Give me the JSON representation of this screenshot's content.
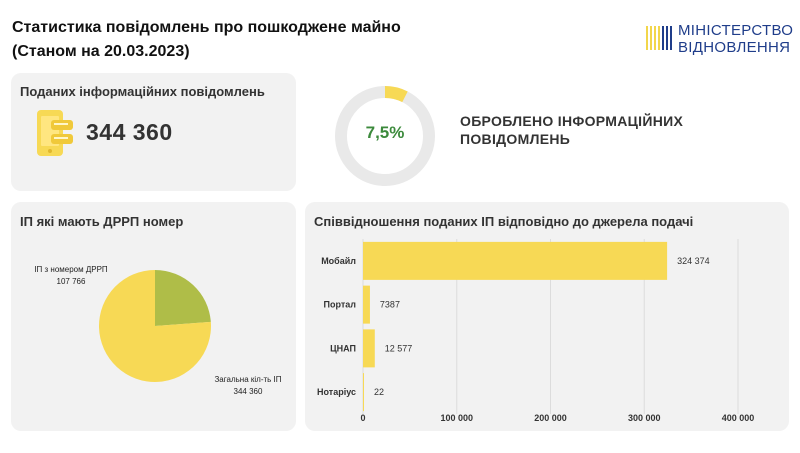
{
  "header": {
    "title_line1": "Статистика повідомлень про пошкоджене майно",
    "title_line2": "(Станом на 20.03.2023)"
  },
  "logo": {
    "line1": "МІНІСТЕРСТВО",
    "line2": "ВІДНОВЛЕННЯ",
    "icon": "ministry-logo-icon",
    "color": "#1f3d8a",
    "accent": "#f2d64b"
  },
  "submitted": {
    "title": "Поданих інформаційних повідомлень",
    "value": "344 360",
    "icon": "phone-icon"
  },
  "processed": {
    "percent_label": "7,5%",
    "percent": 7.5,
    "line1": "ОБРОБЛЕНО ІНФОРМАЦІЙНИХ",
    "line2": "ПОВІДОМЛЕНЬ"
  },
  "pie_card": {
    "title": "ІП які мають ДРРП номер",
    "label_drrp_line1": "ІП з номером ДРРП",
    "label_drrp_line2": "107 766",
    "label_total_line1": "Загальна кіл-ть ІП",
    "label_total_line2": "344 360"
  },
  "bar_card": {
    "title": "Співвідношення поданих ІП відповідно до джерела подачі"
  },
  "colors": {
    "yellow": "#f7d955",
    "olive": "#afbd48",
    "green_text": "#3c8a3c",
    "card_bg": "#f2f2f2",
    "track": "#e9e9e9"
  },
  "chart_data": [
    {
      "type": "pie",
      "title": "ІП які мають ДРРП номер",
      "slices": [
        {
          "label": "ІП з номером ДРРП",
          "value": 107766,
          "value_label": "107 766",
          "color": "#afbd48"
        },
        {
          "label": "Загальна кіл-ть ІП",
          "value": 344360,
          "value_label": "344 360",
          "color": "#f7d955"
        }
      ]
    },
    {
      "type": "bar",
      "orientation": "horizontal",
      "title": "Співвідношення поданих ІП відповідно до джерела подачі",
      "categories": [
        "Мобайл",
        "Портал",
        "ЦНАП",
        "Нотаріус"
      ],
      "values": [
        324374,
        7387,
        12577,
        22
      ],
      "value_labels": [
        "324 374",
        "7387",
        "12 577",
        "22"
      ],
      "xlim": [
        0,
        400000
      ],
      "xticks": [
        0,
        100000,
        200000,
        300000,
        400000
      ],
      "xtick_labels": [
        "0",
        "100 000",
        "200 000",
        "300 000",
        "400 000"
      ],
      "grid": true,
      "color": "#f7d955"
    }
  ]
}
